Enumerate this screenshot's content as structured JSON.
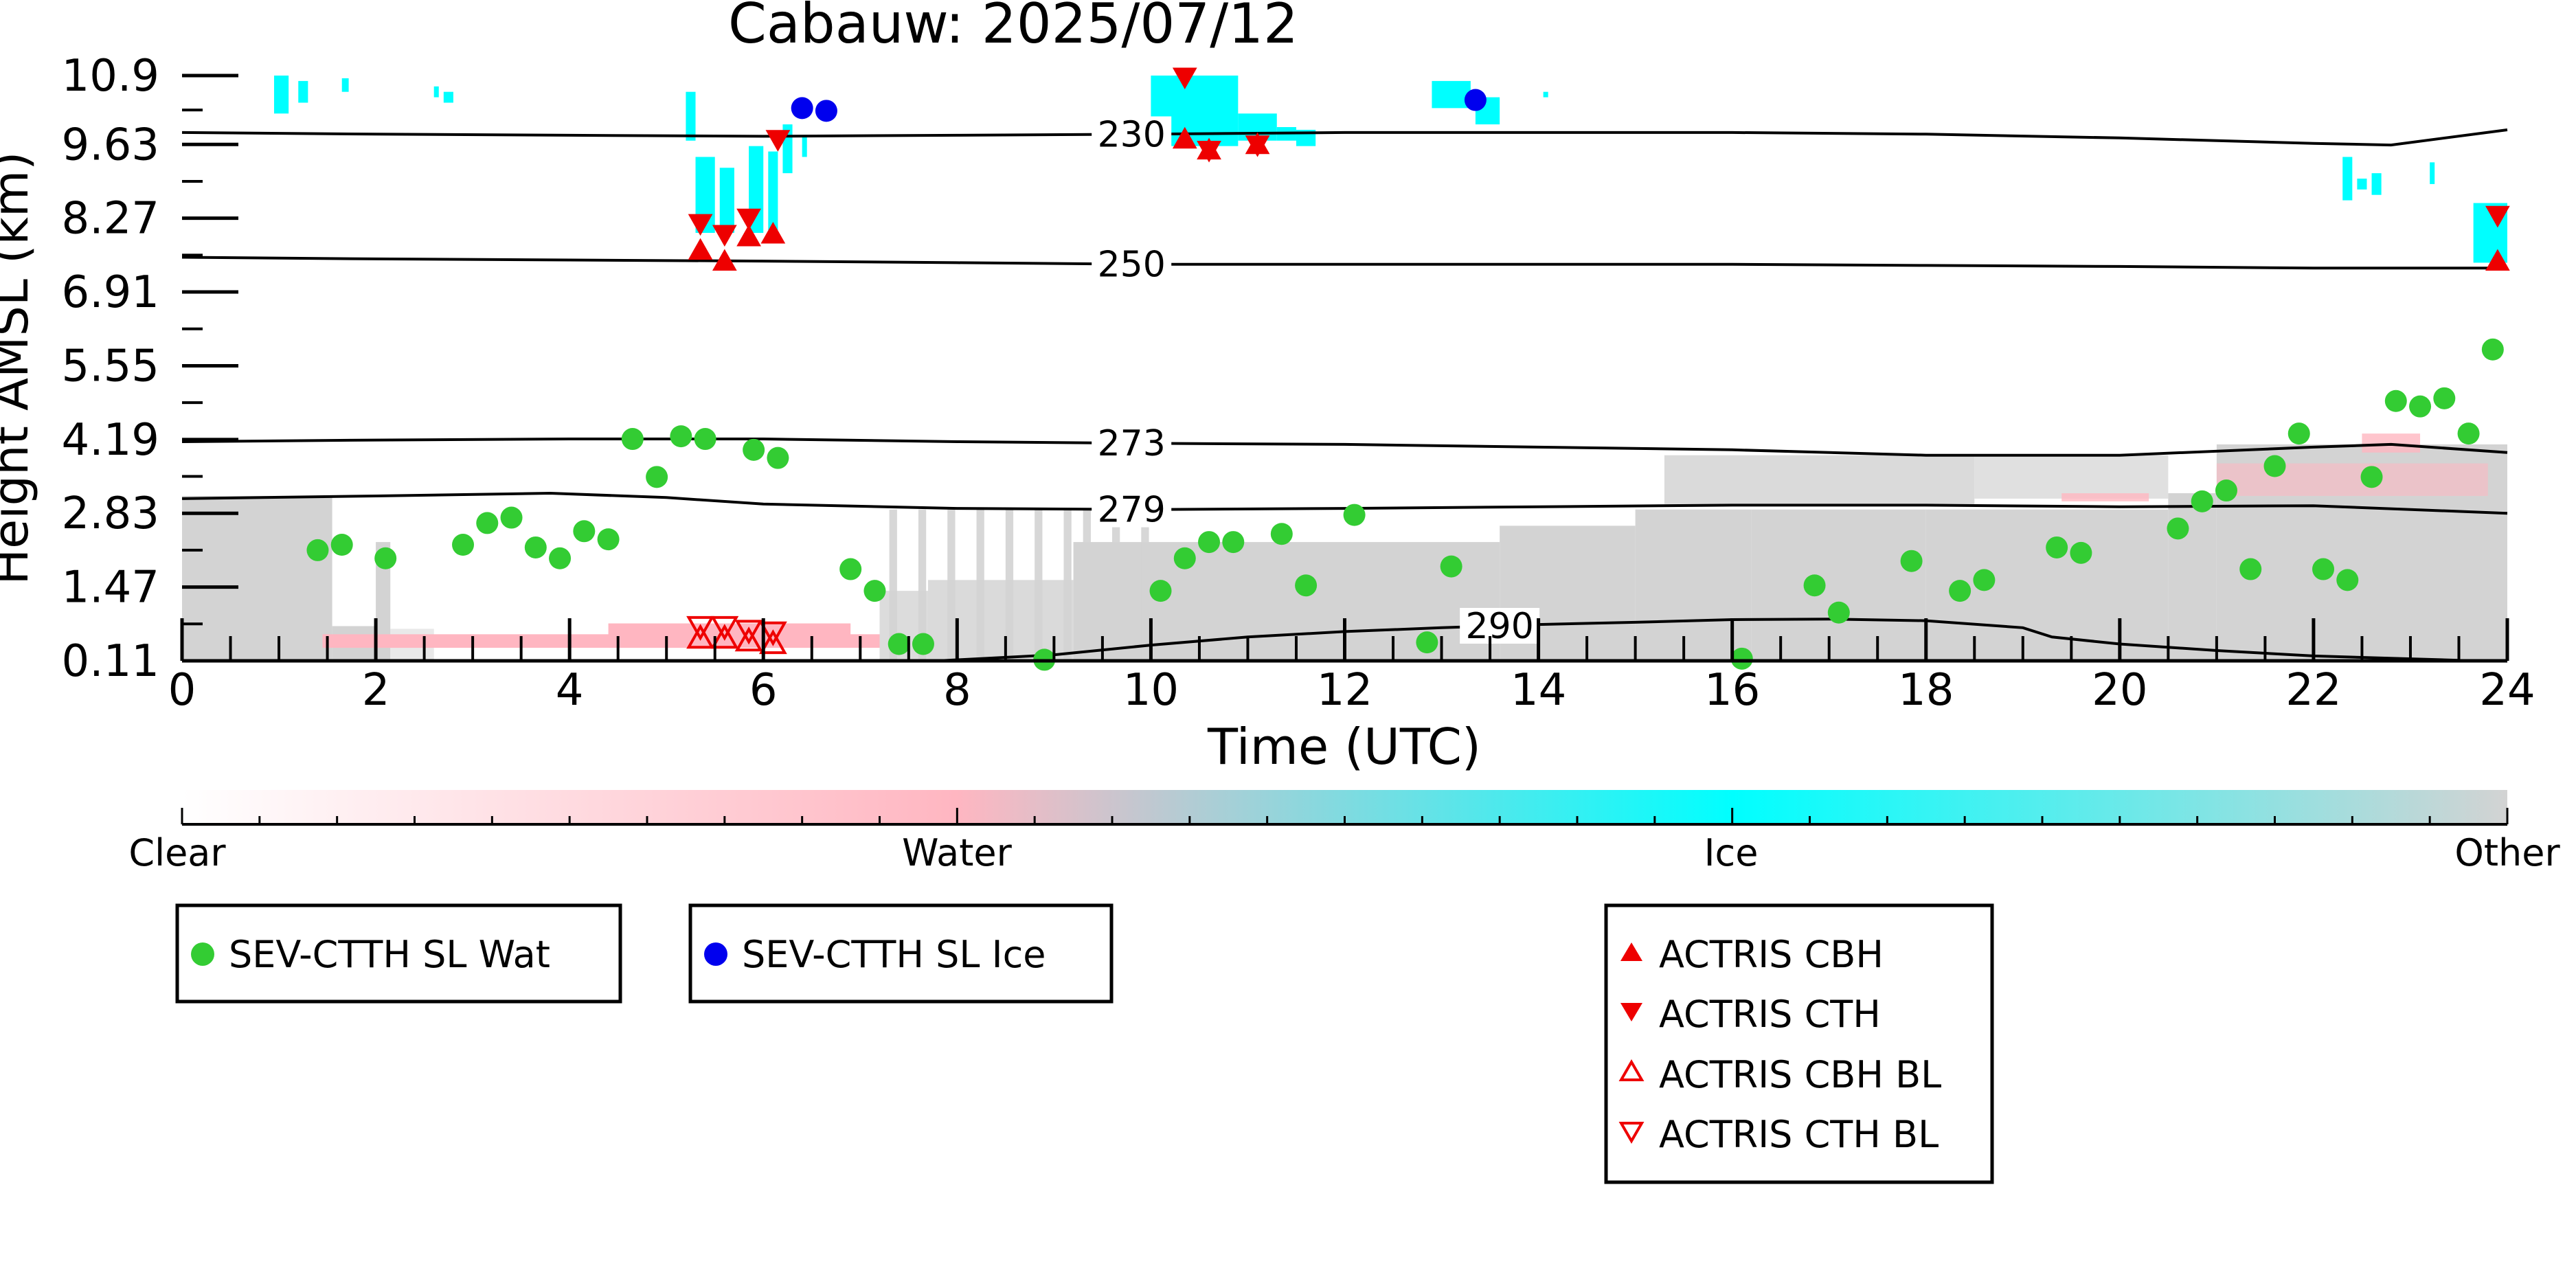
{
  "chart_data": {
    "type": "scatter",
    "title": "Cabauw: 2025/07/12",
    "xlabel": "Time (UTC)",
    "ylabel": "Height AMSL (km)",
    "xlim": [
      0,
      24
    ],
    "ylim": [
      0.11,
      10.9
    ],
    "x_ticks": [
      "0",
      "2",
      "4",
      "6",
      "8",
      "10",
      "12",
      "14",
      "16",
      "18",
      "20",
      "22",
      "24"
    ],
    "y_ticks": [
      "0.11",
      "1.47",
      "2.83",
      "4.19",
      "5.55",
      "6.91",
      "8.27",
      "9.63",
      "10.9"
    ],
    "y_tick_values": [
      0.11,
      1.47,
      2.83,
      4.19,
      5.55,
      6.91,
      8.27,
      9.63,
      10.9
    ],
    "grid": false,
    "colors": {
      "clear": "#ffffff",
      "water": "#ffb6c1",
      "ice": "#00ffff",
      "other": "#d3d3d3",
      "sev_water": "#33cc33",
      "sev_ice": "#0000ee",
      "actris": "#ee0000"
    },
    "colorbar": {
      "labels": [
        "Clear",
        "Water",
        "Ice",
        "Other"
      ]
    },
    "isotherms": [
      {
        "label": "230",
        "label_x": 9.8,
        "x": [
          0,
          2,
          4,
          6,
          8,
          10,
          12,
          14,
          16,
          18,
          20,
          22,
          22.8,
          24
        ],
        "y": [
          9.85,
          9.82,
          9.8,
          9.78,
          9.8,
          9.82,
          9.85,
          9.85,
          9.85,
          9.82,
          9.75,
          9.65,
          9.62,
          9.9
        ]
      },
      {
        "label": "250",
        "label_x": 9.8,
        "x": [
          0,
          2,
          4,
          6,
          8,
          10,
          12,
          14,
          16,
          18,
          20,
          22,
          24
        ],
        "y": [
          7.55,
          7.52,
          7.5,
          7.48,
          7.45,
          7.42,
          7.42,
          7.42,
          7.42,
          7.4,
          7.38,
          7.35,
          7.35
        ]
      },
      {
        "label": "273",
        "label_x": 9.8,
        "x": [
          0,
          2,
          4,
          6,
          8,
          10,
          12,
          14,
          16,
          18,
          20,
          22,
          22.8,
          24
        ],
        "y": [
          4.15,
          4.18,
          4.2,
          4.2,
          4.15,
          4.12,
          4.1,
          4.05,
          4.0,
          3.9,
          3.9,
          4.05,
          4.1,
          3.95
        ]
      },
      {
        "label": "279",
        "label_x": 9.8,
        "x": [
          0,
          2,
          3.8,
          5,
          6,
          8,
          10,
          12,
          14,
          16,
          18,
          20,
          22,
          24
        ],
        "y": [
          3.1,
          3.15,
          3.2,
          3.12,
          3.0,
          2.92,
          2.9,
          2.92,
          2.95,
          2.98,
          2.98,
          2.95,
          2.97,
          2.83
        ]
      },
      {
        "label": "290",
        "label_x": 13.6,
        "x": [
          7.8,
          9,
          10,
          11,
          12,
          13,
          14,
          15,
          16,
          17,
          18,
          19,
          19.3,
          20,
          21,
          22,
          23.5
        ],
        "y": [
          0.11,
          0.22,
          0.4,
          0.55,
          0.65,
          0.72,
          0.78,
          0.82,
          0.87,
          0.88,
          0.85,
          0.72,
          0.55,
          0.42,
          0.3,
          0.2,
          0.12
        ]
      }
    ],
    "series": [
      {
        "name": "SEV-CTTH SL Wat",
        "marker": "circle",
        "color": "#33cc33",
        "x": [
          1.4,
          1.65,
          2.1,
          2.9,
          3.15,
          3.4,
          3.65,
          3.9,
          4.15,
          4.4,
          4.65,
          4.9,
          5.15,
          5.4,
          5.9,
          6.15,
          6.9,
          7.15,
          7.4,
          7.65,
          8.9,
          10.1,
          10.35,
          10.6,
          10.85,
          11.35,
          11.6,
          12.1,
          12.85,
          13.1,
          16.1,
          16.85,
          17.1,
          17.85,
          18.35,
          18.6,
          19.35,
          19.6,
          20.6,
          20.85,
          21.1,
          21.35,
          21.6,
          21.85,
          22.1,
          22.35,
          22.6,
          22.85,
          23.1,
          23.35,
          23.6,
          23.85
        ],
        "y": [
          2.15,
          2.25,
          2.0,
          2.25,
          2.65,
          2.75,
          2.2,
          2.0,
          2.5,
          2.35,
          4.2,
          3.5,
          4.25,
          4.2,
          4.0,
          3.85,
          1.8,
          1.4,
          0.42,
          0.42,
          0.13,
          1.4,
          2.0,
          2.3,
          2.3,
          2.45,
          1.5,
          2.8,
          0.45,
          1.85,
          0.15,
          1.5,
          1.0,
          1.95,
          1.4,
          1.6,
          2.2,
          2.1,
          2.55,
          3.05,
          3.25,
          1.8,
          3.7,
          4.3,
          1.8,
          1.6,
          3.5,
          4.9,
          4.8,
          4.95,
          4.3,
          5.85
        ]
      },
      {
        "name": "SEV-CTTH SL Ice",
        "marker": "circle",
        "color": "#0000ee",
        "x": [
          6.4,
          6.65,
          13.35
        ],
        "y": [
          10.3,
          10.25,
          10.45
        ]
      },
      {
        "name": "ACTRIS CBH",
        "marker": "triangle-up",
        "color": "#ee0000",
        "x": [
          5.35,
          5.6,
          5.85,
          6.1,
          10.35,
          10.6,
          11.1,
          23.9
        ],
        "y": [
          7.7,
          7.5,
          7.95,
          8.0,
          9.75,
          9.55,
          9.65,
          7.5
        ]
      },
      {
        "name": "ACTRIS CTH",
        "marker": "triangle-down",
        "color": "#ee0000",
        "x": [
          5.35,
          5.6,
          5.85,
          6.15,
          10.35,
          10.6,
          11.1,
          23.9
        ],
        "y": [
          8.15,
          7.95,
          8.25,
          9.7,
          10.85,
          9.5,
          9.6,
          8.3
        ]
      },
      {
        "name": "ACTRIS CBH BL",
        "marker": "triangle-up-open",
        "color": "#ee0000",
        "x": [
          5.35,
          5.6,
          5.85,
          6.1
        ],
        "y": [
          0.55,
          0.55,
          0.5,
          0.45
        ]
      },
      {
        "name": "ACTRIS CTH BL",
        "marker": "triangle-down-open",
        "color": "#ee0000",
        "x": [
          5.35,
          5.6,
          5.85,
          6.1
        ],
        "y": [
          0.72,
          0.72,
          0.65,
          0.62
        ]
      }
    ],
    "legends": [
      [
        "SEV-CTTH SL Wat"
      ],
      [
        "SEV-CTTH SL Ice"
      ],
      [
        "ACTRIS CBH",
        "ACTRIS CTH",
        "ACTRIS CBH BL",
        "ACTRIS CTH BL"
      ]
    ]
  }
}
